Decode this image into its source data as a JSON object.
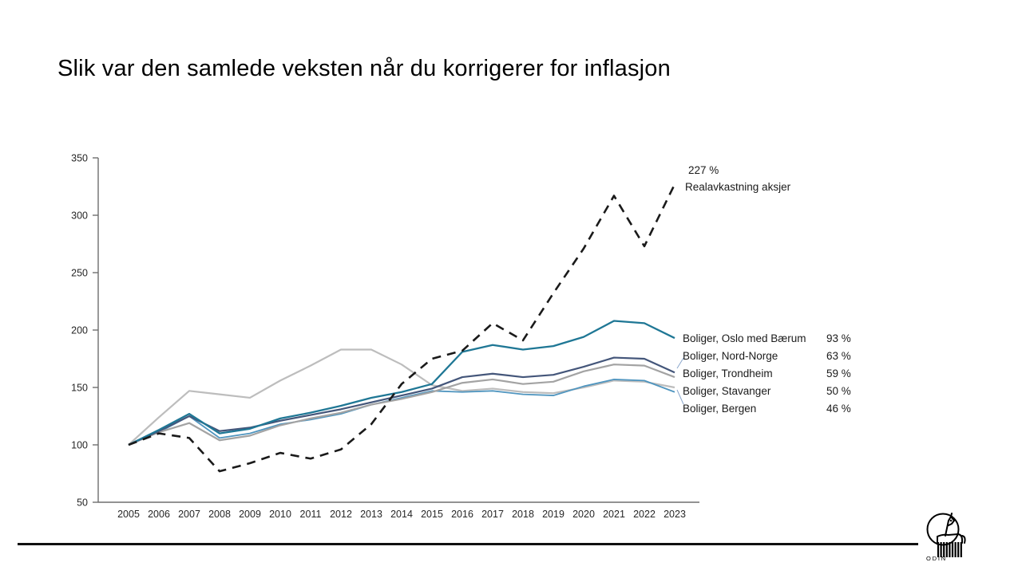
{
  "slide": {
    "title": "Slik var den samlede veksten når du korrigerer for inflasjon",
    "brand": "ODIN"
  },
  "chart_data": {
    "type": "line",
    "x": [
      2005,
      2006,
      2007,
      2008,
      2009,
      2010,
      2011,
      2012,
      2013,
      2014,
      2015,
      2016,
      2017,
      2018,
      2019,
      2020,
      2021,
      2022,
      2023
    ],
    "ylim": [
      50,
      350
    ],
    "ytick_step": 50,
    "grid": false,
    "legend_position": "right-of-line-ends",
    "series": [
      {
        "id": "aksjer",
        "name": "Realavkastning aksjer",
        "final_label": "227 %",
        "color": "#1a1a1a",
        "dashed": true,
        "width": 2.6,
        "values": [
          100,
          110,
          106,
          77,
          84,
          93,
          88,
          96,
          118,
          153,
          175,
          182,
          206,
          191,
          232,
          271,
          317,
          273,
          327
        ]
      },
      {
        "id": "oslo",
        "name": "Boliger, Oslo med Bærum",
        "final_label": "93 %",
        "color": "#1f7795",
        "dashed": false,
        "width": 2.3,
        "values": [
          100,
          113,
          127,
          110,
          114,
          123,
          128,
          134,
          141,
          146,
          153,
          181,
          187,
          183,
          186,
          194,
          208,
          206,
          193
        ]
      },
      {
        "id": "nord-norge",
        "name": "Boliger, Nord-Norge",
        "final_label": "63 %",
        "color": "#44567a",
        "dashed": false,
        "width": 2.2,
        "values": [
          100,
          112,
          125,
          112,
          115,
          121,
          126,
          131,
          137,
          143,
          149,
          159,
          162,
          159,
          161,
          168,
          176,
          175,
          163
        ]
      },
      {
        "id": "trondheim",
        "name": "Boliger, Trondheim",
        "final_label": "59 %",
        "color": "#a3a3a3",
        "dashed": false,
        "width": 2.2,
        "values": [
          100,
          111,
          119,
          104,
          108,
          117,
          123,
          128,
          135,
          140,
          146,
          154,
          157,
          153,
          155,
          164,
          170,
          169,
          159
        ]
      },
      {
        "id": "stavanger",
        "name": "Boliger, Stavanger",
        "final_label": "50 %",
        "color": "#bdbdbd",
        "dashed": false,
        "width": 2.2,
        "values": [
          100,
          124,
          147,
          144,
          141,
          156,
          169,
          183,
          183,
          170,
          152,
          147,
          149,
          146,
          145,
          150,
          156,
          155,
          150
        ]
      },
      {
        "id": "bergen",
        "name": "Boliger, Bergen",
        "final_label": "46 %",
        "color": "#4f95bf",
        "dashed": false,
        "width": 1.8,
        "values": [
          100,
          111,
          125,
          106,
          110,
          118,
          122,
          127,
          135,
          141,
          147,
          146,
          147,
          144,
          143,
          151,
          157,
          156,
          146
        ]
      }
    ]
  }
}
